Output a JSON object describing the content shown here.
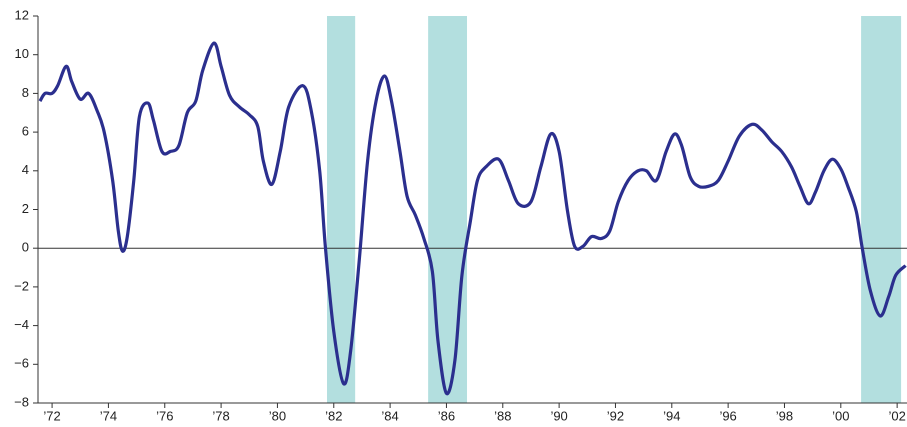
{
  "chart_data": {
    "type": "line",
    "x": [
      1971.57,
      1971.75,
      1972.0,
      1972.2,
      1972.5,
      1972.7,
      1973.0,
      1973.3,
      1973.6,
      1973.85,
      1974.15,
      1974.35,
      1974.5,
      1974.67,
      1974.9,
      1975.1,
      1975.4,
      1975.6,
      1975.9,
      1976.2,
      1976.5,
      1976.8,
      1977.1,
      1977.35,
      1977.75,
      1978.0,
      1978.3,
      1978.65,
      1979.0,
      1979.3,
      1979.5,
      1979.8,
      1980.1,
      1980.4,
      1980.9,
      1981.2,
      1981.5,
      1981.7,
      1982.0,
      1982.35,
      1982.6,
      1982.9,
      1983.2,
      1983.5,
      1983.8,
      1984.05,
      1984.35,
      1984.6,
      1984.9,
      1985.2,
      1985.5,
      1985.7,
      1986.0,
      1986.3,
      1986.55,
      1986.85,
      1987.1,
      1987.4,
      1987.85,
      1988.2,
      1988.55,
      1989.0,
      1989.35,
      1989.7,
      1990.0,
      1990.3,
      1990.55,
      1990.85,
      1991.15,
      1991.5,
      1991.8,
      1992.1,
      1992.45,
      1992.8,
      1993.1,
      1993.45,
      1993.8,
      1994.1,
      1994.35,
      1994.65,
      1994.95,
      1995.3,
      1995.65,
      1996.0,
      1996.4,
      1996.85,
      1997.2,
      1997.55,
      1997.9,
      1998.25,
      1998.55,
      1998.85,
      1999.1,
      1999.4,
      1999.7,
      2000.0,
      2000.25,
      2000.55,
      2000.75,
      2001.05,
      2001.4,
      2001.7,
      2001.95,
      2002.3
    ],
    "values": [
      7.6,
      8.0,
      8.0,
      8.4,
      9.4,
      8.6,
      7.7,
      8.0,
      7.1,
      6.0,
      3.5,
      0.9,
      -0.15,
      0.6,
      3.5,
      6.8,
      7.5,
      6.6,
      5.0,
      5.0,
      5.3,
      7.0,
      7.6,
      9.2,
      10.6,
      9.4,
      7.9,
      7.3,
      6.9,
      6.3,
      4.5,
      3.3,
      5.0,
      7.3,
      8.4,
      7.1,
      4.0,
      0.1,
      -4.3,
      -7.0,
      -5.3,
      -0.7,
      4.5,
      7.6,
      8.9,
      7.6,
      5.0,
      2.7,
      1.7,
      0.5,
      -1.2,
      -4.8,
      -7.5,
      -5.8,
      -1.4,
      1.4,
      3.5,
      4.2,
      4.6,
      3.5,
      2.3,
      2.4,
      4.2,
      5.9,
      5.0,
      1.9,
      0.1,
      0.1,
      0.6,
      0.5,
      0.9,
      2.4,
      3.5,
      4.0,
      4.0,
      3.5,
      5.0,
      5.9,
      5.3,
      3.7,
      3.2,
      3.2,
      3.5,
      4.5,
      5.8,
      6.4,
      6.1,
      5.5,
      5.0,
      4.2,
      3.2,
      2.3,
      2.9,
      4.0,
      4.6,
      4.1,
      3.2,
      1.9,
      0.1,
      -2.2,
      -3.5,
      -2.5,
      -1.4,
      -0.9
    ],
    "color": "#2b2f8e",
    "shaded_regions": [
      [
        1981.76,
        1982.76
      ],
      [
        1985.35,
        1986.73
      ],
      [
        2000.72,
        2002.14
      ]
    ],
    "shade_color": "#b3dfdf",
    "reference_line": 0,
    "xlim": [
      1971.5,
      2002.35
    ],
    "xticks": [
      {
        "value": 1972,
        "label": "’72"
      },
      {
        "value": 1974,
        "label": "’74"
      },
      {
        "value": 1976,
        "label": "’76"
      },
      {
        "value": 1978,
        "label": "’78"
      },
      {
        "value": 1980,
        "label": "’80"
      },
      {
        "value": 1982,
        "label": "’82"
      },
      {
        "value": 1984,
        "label": "’84"
      },
      {
        "value": 1986,
        "label": "’86"
      },
      {
        "value": 1988,
        "label": "’88"
      },
      {
        "value": 1990,
        "label": "’90"
      },
      {
        "value": 1992,
        "label": "’92"
      },
      {
        "value": 1994,
        "label": "’94"
      },
      {
        "value": 1996,
        "label": "’96"
      },
      {
        "value": 1998,
        "label": "’98"
      },
      {
        "value": 2000,
        "label": "’00"
      },
      {
        "value": 2002,
        "label": "’02"
      }
    ],
    "ylim": [
      -8,
      12
    ],
    "yticks": [
      {
        "value": -8,
        "label": "−8"
      },
      {
        "value": -6,
        "label": "−6"
      },
      {
        "value": -4,
        "label": "−4"
      },
      {
        "value": -2,
        "label": "−2"
      },
      0,
      2,
      4,
      6,
      8,
      10,
      12
    ]
  }
}
